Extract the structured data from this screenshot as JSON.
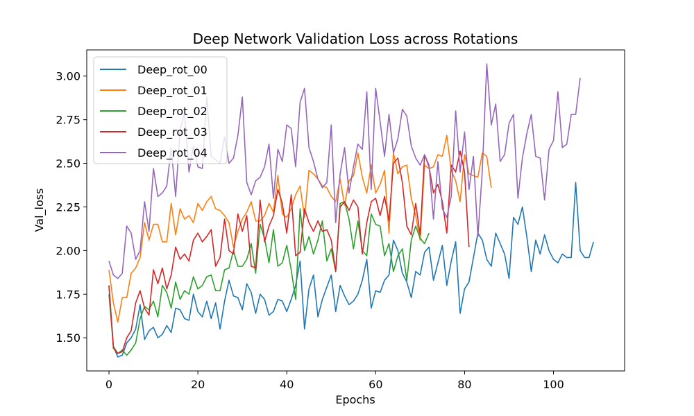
{
  "chart_data": {
    "type": "line",
    "title": "Deep Network Validation Loss across Rotations",
    "xlabel": "Epochs",
    "ylabel": "Val_loss",
    "xlim": [
      -5,
      116
    ],
    "ylim": [
      1.31,
      3.15
    ],
    "xticks": [
      0,
      20,
      40,
      60,
      80,
      100
    ],
    "yticks": [
      1.5,
      1.75,
      2.0,
      2.25,
      2.5,
      2.75,
      3.0
    ],
    "legend_position": "top-left",
    "grid": false,
    "series": [
      {
        "name": "Deep_rot_00",
        "color": "#1f77b4",
        "values": [
          1.8,
          1.45,
          1.39,
          1.4,
          1.47,
          1.5,
          1.55,
          1.69,
          1.49,
          1.54,
          1.56,
          1.5,
          1.52,
          1.57,
          1.53,
          1.67,
          1.66,
          1.61,
          1.6,
          1.75,
          1.65,
          1.62,
          1.71,
          1.61,
          1.7,
          1.55,
          1.71,
          1.83,
          1.74,
          1.73,
          1.66,
          1.81,
          1.76,
          1.64,
          1.75,
          1.72,
          1.63,
          1.65,
          1.72,
          1.71,
          1.65,
          1.72,
          1.8,
          1.94,
          1.55,
          1.78,
          1.86,
          1.62,
          1.72,
          1.79,
          1.86,
          1.65,
          1.8,
          1.74,
          1.69,
          1.71,
          1.75,
          1.83,
          1.95,
          1.67,
          1.77,
          1.76,
          1.83,
          1.86,
          2.06,
          2.0,
          1.87,
          1.82,
          1.73,
          1.88,
          1.86,
          1.99,
          2.02,
          1.83,
          1.93,
          2.03,
          1.8,
          1.94,
          2.05,
          1.64,
          1.78,
          1.82,
          1.96,
          2.1,
          2.06,
          1.95,
          1.91,
          2.1,
          2.04,
          1.98,
          1.84,
          2.19,
          2.15,
          2.25,
          2.08,
          1.88,
          2.06,
          1.98,
          2.09,
          2.0,
          1.95,
          1.93,
          1.98,
          1.96,
          1.96,
          2.39,
          2.0,
          1.96,
          1.96,
          2.05
        ]
      },
      {
        "name": "Deep_rot_01",
        "color": "#ff7f0e",
        "values": [
          1.89,
          1.7,
          1.59,
          1.73,
          1.73,
          1.87,
          1.9,
          1.96,
          2.16,
          2.06,
          2.15,
          2.15,
          2.05,
          2.05,
          2.27,
          2.09,
          2.24,
          2.18,
          2.2,
          2.16,
          2.27,
          2.23,
          2.28,
          2.31,
          2.24,
          2.23,
          2.2,
          2.16,
          2.02,
          2.11,
          2.18,
          2.22,
          2.28,
          2.17,
          2.17,
          2.2,
          2.27,
          2.22,
          2.43,
          2.21,
          2.19,
          2.24,
          2.32,
          2.37,
          2.19,
          2.46,
          2.44,
          2.41,
          2.37,
          2.36,
          2.31,
          2.28,
          2.41,
          2.26,
          2.4,
          2.43,
          2.56,
          2.42,
          2.33,
          2.49,
          2.33,
          2.38,
          2.46,
          2.1,
          2.56,
          2.44,
          2.48,
          2.49,
          2.3,
          2.2,
          2.06,
          2.49,
          2.47,
          2.48,
          2.55,
          2.54,
          2.66,
          2.46,
          2.4,
          2.28,
          2.55,
          2.44,
          2.43,
          2.42,
          2.56,
          2.54,
          2.36
        ]
      },
      {
        "name": "Deep_rot_02",
        "color": "#2ca02c",
        "values": [
          1.75,
          1.45,
          1.41,
          1.43,
          1.4,
          1.43,
          1.47,
          1.61,
          1.68,
          1.66,
          1.71,
          1.62,
          1.8,
          1.76,
          1.67,
          1.82,
          1.72,
          1.77,
          1.75,
          1.85,
          1.78,
          1.8,
          1.85,
          1.86,
          1.77,
          1.77,
          1.89,
          1.9,
          2.0,
          1.91,
          1.91,
          1.95,
          2.04,
          1.87,
          2.15,
          2.07,
          1.93,
          2.12,
          1.91,
          1.93,
          2.03,
          1.89,
          1.72,
          2.24,
          2.0,
          2.08,
          1.98,
          2.06,
          2.17,
          1.94,
          2.01,
          1.88,
          2.27,
          2.28,
          2.18,
          2.01,
          2.17,
          2.0,
          1.97,
          2.21,
          2.15,
          2.14,
          1.97,
          2.04,
          1.88,
          1.97,
          2.01,
          1.83,
          2.06,
          2.14,
          2.07,
          2.04,
          2.1
        ]
      },
      {
        "name": "Deep_rot_03",
        "color": "#d62728",
        "values": [
          1.8,
          1.44,
          1.41,
          1.42,
          1.5,
          1.54,
          1.7,
          1.77,
          1.67,
          1.63,
          1.89,
          1.81,
          1.9,
          1.78,
          1.86,
          2.02,
          1.95,
          1.98,
          1.94,
          2.06,
          2.1,
          2.05,
          2.08,
          2.12,
          1.91,
          1.96,
          2.18,
          2.0,
          1.98,
          2.21,
          2.11,
          2.2,
          1.91,
          1.9,
          2.29,
          2.05,
          2.14,
          2.2,
          2.35,
          2.27,
          2.1,
          2.32,
          1.97,
          1.99,
          2.24,
          2.16,
          2.11,
          2.17,
          2.11,
          2.12,
          2.06,
          1.88,
          2.25,
          2.28,
          2.23,
          2.29,
          2.25,
          1.98,
          2.16,
          2.28,
          2.3,
          2.2,
          2.31,
          2.17,
          2.5,
          2.53,
          2.39,
          2.14,
          2.09,
          2.27,
          2.09,
          2.55,
          2.48,
          2.33,
          2.38,
          2.28,
          2.1,
          2.49,
          2.45,
          2.57,
          2.45,
          2.02
        ]
      },
      {
        "name": "Deep_rot_04",
        "color": "#9467bd",
        "values": [
          1.94,
          1.86,
          1.84,
          1.87,
          2.14,
          2.1,
          1.95,
          2.0,
          2.28,
          2.11,
          2.47,
          2.31,
          2.33,
          2.37,
          2.59,
          2.31,
          2.69,
          2.79,
          2.45,
          2.6,
          2.48,
          2.47,
          2.88,
          2.54,
          2.52,
          2.5,
          2.65,
          2.5,
          2.53,
          2.66,
          2.88,
          2.39,
          2.32,
          2.4,
          2.42,
          2.48,
          2.61,
          2.3,
          2.58,
          2.51,
          2.72,
          2.7,
          2.48,
          2.85,
          2.93,
          2.59,
          2.51,
          2.41,
          2.36,
          2.39,
          2.72,
          2.16,
          2.44,
          2.59,
          2.33,
          2.48,
          2.61,
          2.58,
          2.91,
          2.35,
          2.93,
          2.74,
          2.54,
          2.78,
          2.56,
          2.64,
          2.81,
          2.77,
          2.6,
          2.53,
          2.49,
          2.55,
          2.49,
          2.18,
          2.51,
          2.24,
          2.19,
          2.31,
          2.8,
          2.45,
          2.68,
          2.35,
          2.54,
          2.08,
          2.46,
          3.07,
          2.72,
          2.84,
          2.51,
          2.55,
          2.73,
          2.78,
          2.3,
          2.53,
          2.67,
          2.78,
          2.54,
          2.53,
          2.29,
          2.58,
          2.63,
          2.91,
          2.59,
          2.61,
          2.78,
          2.78,
          2.99
        ]
      }
    ]
  }
}
